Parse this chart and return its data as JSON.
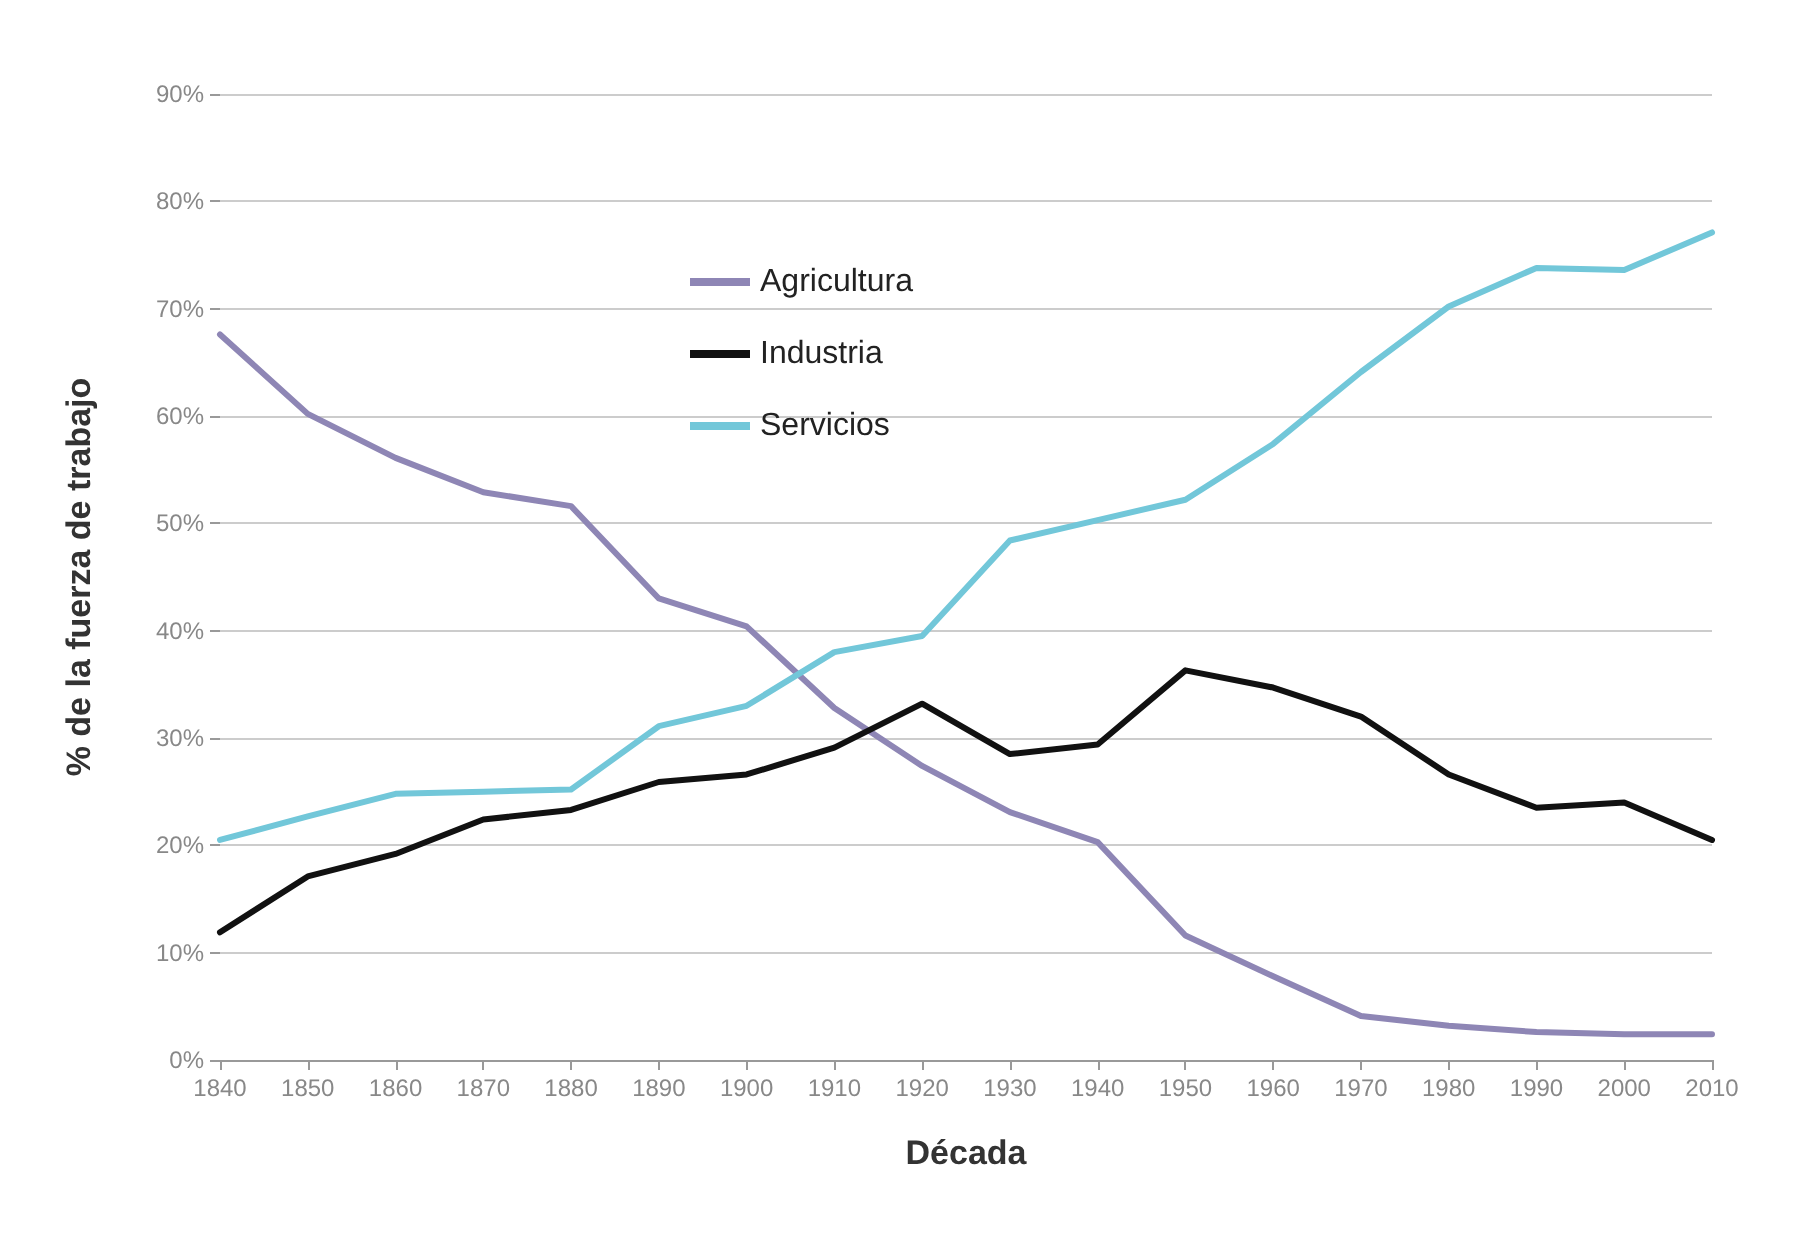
{
  "chart_data": {
    "type": "line",
    "xlabel": "Década",
    "ylabel": "% de la fuerza de trabajo",
    "categories": [
      "1840",
      "1850",
      "1860",
      "1870",
      "1880",
      "1890",
      "1900",
      "1910",
      "1920",
      "1930",
      "1940",
      "1950",
      "1960",
      "1970",
      "1980",
      "1990",
      "2000",
      "2010"
    ],
    "series": [
      {
        "name": "Agricultura",
        "color": "#8e86b5",
        "values": [
          67.6,
          60.2,
          56.1,
          52.9,
          51.6,
          43.0,
          40.4,
          32.8,
          27.4,
          23.1,
          20.3,
          11.6,
          7.8,
          4.1,
          3.2,
          2.6,
          2.4,
          2.4
        ]
      },
      {
        "name": "Industria",
        "color": "#111111",
        "values": [
          11.9,
          17.1,
          19.2,
          22.4,
          23.3,
          25.9,
          26.6,
          29.1,
          33.2,
          28.5,
          29.4,
          36.3,
          34.7,
          32.0,
          26.6,
          23.5,
          24.0,
          20.5
        ]
      },
      {
        "name": "Servicios",
        "color": "#72c7d9",
        "values": [
          20.5,
          22.7,
          24.8,
          25.0,
          25.2,
          31.1,
          33.0,
          38.0,
          39.5,
          48.4,
          50.3,
          52.2,
          57.4,
          64.1,
          70.2,
          73.8,
          73.6,
          77.1
        ]
      }
    ],
    "ylim": [
      0,
      90
    ],
    "yticks": [
      {
        "value": 0,
        "label": "0%"
      },
      {
        "value": 10,
        "label": "10%"
      },
      {
        "value": 20,
        "label": "20%"
      },
      {
        "value": 30,
        "label": "30%"
      },
      {
        "value": 40,
        "label": "40%"
      },
      {
        "value": 50,
        "label": "50%"
      },
      {
        "value": 60,
        "label": "60%"
      },
      {
        "value": 70,
        "label": "70%"
      },
      {
        "value": 80,
        "label": "80%"
      },
      {
        "value": 90,
        "label": "90%"
      }
    ],
    "grid": "y",
    "legend": "top left",
    "marker": "none",
    "line_style": "solid"
  }
}
